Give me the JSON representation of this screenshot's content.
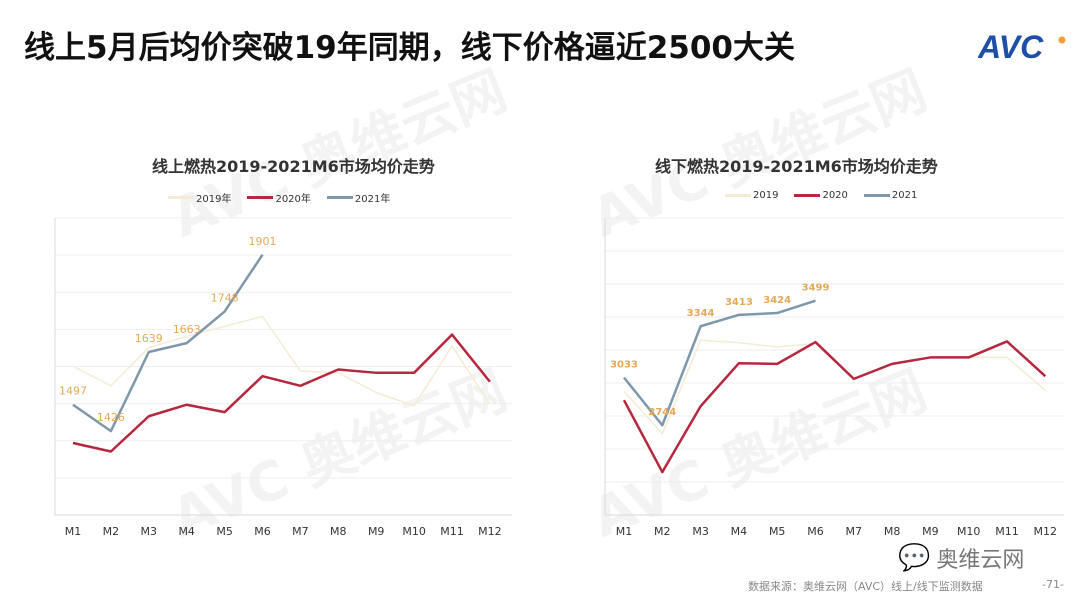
{
  "title": "线上5月后均价突破19年同期，线下价格逼近2500大关",
  "logo": "AVC",
  "colors": {
    "s2019": "#f3ecd4",
    "s2020": "#b5283f",
    "s2021": "#7d98aa",
    "label": "#e5a85a",
    "brand": "#1e4fa8",
    "brand_dot": "#f0a030"
  },
  "footer": {
    "source": "数据来源：奥维云网（AVC）线上/线下监测数据",
    "page": "-71-",
    "wechat": "奥维云网"
  },
  "watermark": "奥维云网 ALL VIEW CLOUD",
  "chart_data": [
    {
      "type": "line",
      "title": "线上燃热2019-2021M6市场均价走势",
      "categories": [
        "M1",
        "M2",
        "M3",
        "M4",
        "M5",
        "M6",
        "M7",
        "M8",
        "M9",
        "M10",
        "M11",
        "M12"
      ],
      "ylim": [
        1200,
        2000
      ],
      "grid": true,
      "legend": "top",
      "series": [
        {
          "name": "2019年",
          "values": [
            1601,
            1548,
            1651,
            1681,
            1708,
            1735,
            1588,
            1583,
            1530,
            1494,
            1655,
            1499
          ]
        },
        {
          "name": "2020年",
          "values": [
            1394,
            1371,
            1466,
            1497,
            1477,
            1574,
            1548,
            1592,
            1583,
            1583,
            1686,
            1559
          ]
        },
        {
          "name": "2021年",
          "values": [
            1497,
            1426,
            1639,
            1663,
            1748,
            1901,
            null,
            null,
            null,
            null,
            null,
            null
          ],
          "labels": [
            "1497",
            "1426",
            "1639",
            "1663",
            "1748",
            "1901"
          ]
        }
      ]
    },
    {
      "type": "line",
      "title": "线下燃热2019-2021M6市场均价走势",
      "categories": [
        "M1",
        "M2",
        "M3",
        "M4",
        "M5",
        "M6",
        "M7",
        "M8",
        "M9",
        "M10",
        "M11",
        "M12"
      ],
      "ylim": [
        2200,
        4000
      ],
      "grid": true,
      "legend": "top",
      "series": [
        {
          "name": "2019",
          "values": [
            2950,
            2693,
            3260,
            3244,
            3219,
            3240,
            3025,
            3116,
            3155,
            3155,
            3155,
            2956
          ]
        },
        {
          "name": "2020",
          "values": [
            2896,
            2460,
            2859,
            3120,
            3116,
            3248,
            3025,
            3116,
            3155,
            3155,
            3252,
            3041
          ]
        },
        {
          "name": "2021",
          "values": [
            3033,
            2744,
            3344,
            3413,
            3424,
            3499,
            null,
            null,
            null,
            null,
            null,
            null
          ],
          "labels": [
            "3033",
            "2744",
            "3344",
            "3413",
            "3424",
            "3499"
          ]
        }
      ]
    }
  ]
}
